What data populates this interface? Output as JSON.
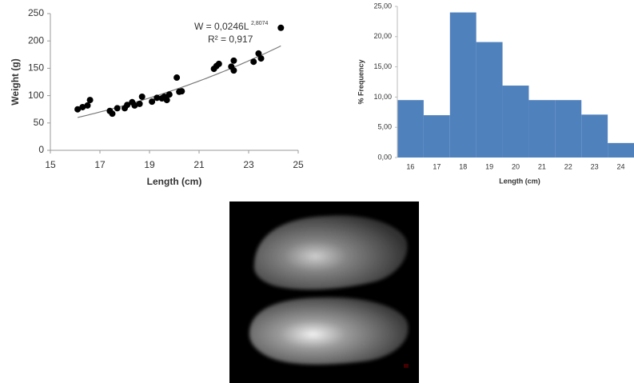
{
  "chart_data": [
    {
      "type": "scatter",
      "x_label": "Length (cm)",
      "y_label": "Weight (g)",
      "equation": "W = 0,0246L",
      "equation_exponent": "2,8074",
      "r_squared": "R² = 0,917",
      "trendline": {
        "type": "power",
        "a": 0.0246,
        "b": 2.8074
      },
      "color": "#000000",
      "x": [
        16.1,
        16.3,
        16.5,
        16.6,
        17.4,
        17.5,
        17.7,
        18.0,
        18.1,
        18.3,
        18.4,
        18.6,
        18.7,
        19.1,
        19.3,
        19.5,
        19.6,
        19.7,
        19.8,
        20.1,
        20.2,
        20.3,
        21.6,
        21.7,
        21.8,
        22.3,
        22.4,
        22.4,
        23.2,
        23.4,
        23.5,
        24.3
      ],
      "values": [
        75,
        79,
        82,
        92,
        72,
        67,
        77,
        77,
        83,
        88,
        82,
        85,
        98,
        89,
        96,
        95,
        98,
        92,
        102,
        133,
        107,
        108,
        149,
        154,
        158,
        153,
        146,
        164,
        162,
        177,
        168,
        224
      ],
      "xlim": [
        15,
        25
      ],
      "xticks": [
        15,
        17,
        19,
        21,
        23,
        25
      ],
      "ylim": [
        0,
        250
      ],
      "yticks": [
        0,
        50,
        100,
        150,
        200,
        250
      ]
    },
    {
      "type": "bar",
      "x_label": "Length (cm)",
      "y_label": "% Frequency",
      "color": "#4f81bd",
      "categories": [
        "16",
        "17",
        "18",
        "19",
        "20",
        "21",
        "22",
        "23",
        "24"
      ],
      "values": [
        9.5,
        7.0,
        24.0,
        19.1,
        11.9,
        9.5,
        9.5,
        7.1,
        2.4
      ],
      "ylim": [
        0,
        25
      ],
      "yticks": [
        {
          "value": 0,
          "label": "0,00"
        },
        {
          "value": 5,
          "label": "5,00"
        },
        {
          "value": 10,
          "label": "10,00"
        },
        {
          "value": 15,
          "label": "15,00"
        },
        {
          "value": 20,
          "label": "20,00"
        },
        {
          "value": 25,
          "label": "25,00"
        }
      ]
    }
  ]
}
